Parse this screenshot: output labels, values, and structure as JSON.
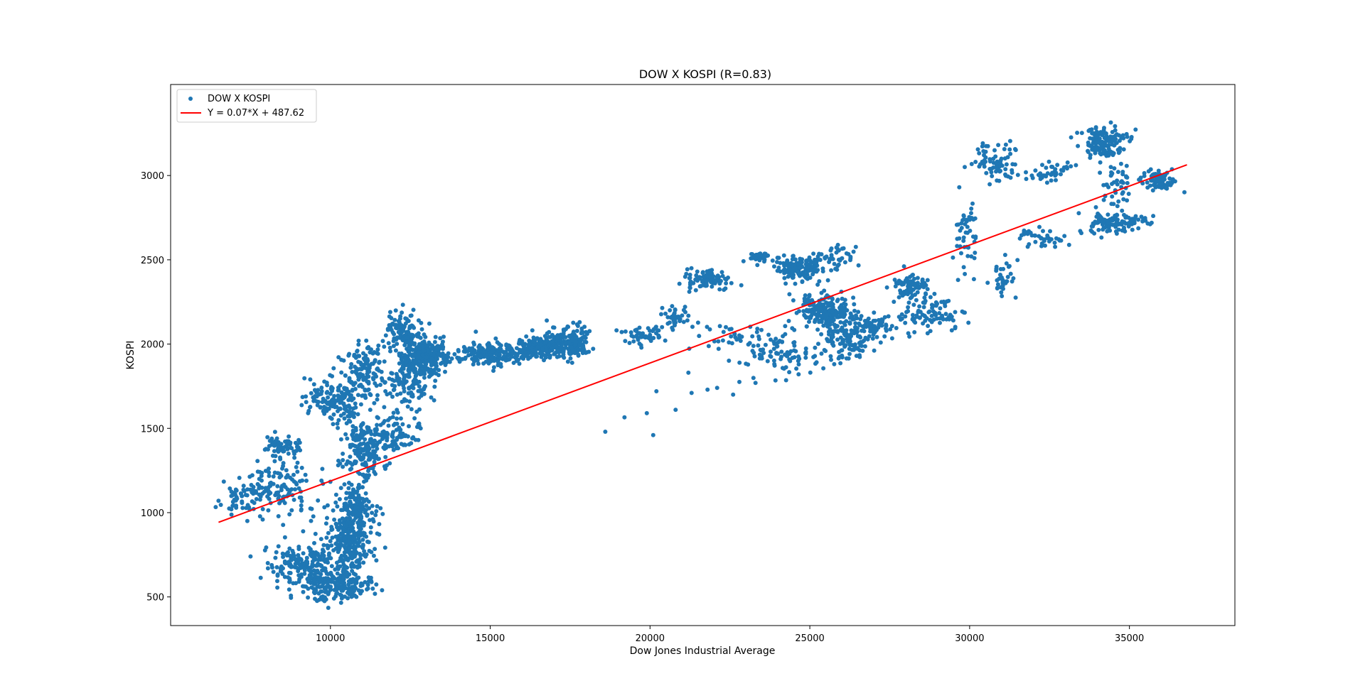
{
  "chart_data": {
    "type": "scatter",
    "title": "DOW X KOSPI (R=0.83)",
    "xlabel": "Dow Jones Industrial Average",
    "ylabel": "KOSPI",
    "xlim": [
      5000,
      38300
    ],
    "ylim": [
      330,
      3540
    ],
    "xticks": [
      10000,
      15000,
      20000,
      25000,
      30000,
      35000
    ],
    "yticks": [
      500,
      1000,
      1500,
      2000,
      2500,
      3000
    ],
    "grid": false,
    "legend_position": "top-left",
    "colors": {
      "scatter": "#1f77b4",
      "fit_line": "#ff0000",
      "axes": "#000000"
    },
    "series": [
      {
        "name": "DOW X KOSPI",
        "kind": "scatter",
        "marker_size": 3,
        "clusters": [
          {
            "cx": 9300,
            "cy": 680,
            "sx": 900,
            "sy": 90,
            "n": 220
          },
          {
            "cx": 10300,
            "cy": 560,
            "sx": 700,
            "sy": 50,
            "n": 180
          },
          {
            "cx": 10600,
            "cy": 850,
            "sx": 500,
            "sy": 140,
            "n": 260
          },
          {
            "cx": 10900,
            "cy": 1050,
            "sx": 350,
            "sy": 120,
            "n": 120
          },
          {
            "cx": 11100,
            "cy": 1380,
            "sx": 500,
            "sy": 120,
            "n": 180
          },
          {
            "cx": 12100,
            "cy": 1450,
            "sx": 500,
            "sy": 60,
            "n": 80
          },
          {
            "cx": 8400,
            "cy": 1150,
            "sx": 700,
            "sy": 110,
            "n": 120
          },
          {
            "cx": 7300,
            "cy": 1100,
            "sx": 500,
            "sy": 80,
            "n": 50
          },
          {
            "cx": 8500,
            "cy": 1400,
            "sx": 400,
            "sy": 40,
            "n": 60
          },
          {
            "cx": 10100,
            "cy": 1670,
            "sx": 600,
            "sy": 90,
            "n": 160
          },
          {
            "cx": 11100,
            "cy": 1850,
            "sx": 500,
            "sy": 110,
            "n": 130
          },
          {
            "cx": 12200,
            "cy": 2080,
            "sx": 350,
            "sy": 80,
            "n": 110
          },
          {
            "cx": 12400,
            "cy": 1780,
            "sx": 500,
            "sy": 120,
            "n": 120
          },
          {
            "cx": 13000,
            "cy": 1930,
            "sx": 450,
            "sy": 70,
            "n": 260
          },
          {
            "cx": 15100,
            "cy": 1950,
            "sx": 700,
            "sy": 50,
            "n": 180
          },
          {
            "cx": 16600,
            "cy": 1980,
            "sx": 600,
            "sy": 40,
            "n": 200
          },
          {
            "cx": 17500,
            "cy": 2020,
            "sx": 400,
            "sy": 60,
            "n": 180
          },
          {
            "cx": 19800,
            "cy": 2050,
            "sx": 500,
            "sy": 50,
            "n": 50
          },
          {
            "cx": 20800,
            "cy": 2150,
            "sx": 300,
            "sy": 50,
            "n": 40
          },
          {
            "cx": 21800,
            "cy": 2380,
            "sx": 450,
            "sy": 40,
            "n": 100
          },
          {
            "cx": 23400,
            "cy": 2520,
            "sx": 200,
            "sy": 20,
            "n": 40
          },
          {
            "cx": 24700,
            "cy": 2450,
            "sx": 500,
            "sy": 50,
            "n": 150
          },
          {
            "cx": 25900,
            "cy": 2520,
            "sx": 500,
            "sy": 50,
            "n": 40
          },
          {
            "cx": 25500,
            "cy": 2200,
            "sx": 600,
            "sy": 70,
            "n": 220
          },
          {
            "cx": 26200,
            "cy": 2030,
            "sx": 500,
            "sy": 80,
            "n": 120
          },
          {
            "cx": 27000,
            "cy": 2100,
            "sx": 400,
            "sy": 50,
            "n": 70
          },
          {
            "cx": 28200,
            "cy": 2340,
            "sx": 400,
            "sy": 50,
            "n": 70
          },
          {
            "cx": 28700,
            "cy": 2170,
            "sx": 700,
            "sy": 60,
            "n": 90
          },
          {
            "cx": 24100,
            "cy": 1950,
            "sx": 800,
            "sy": 90,
            "n": 100
          },
          {
            "cx": 22500,
            "cy": 2050,
            "sx": 800,
            "sy": 50,
            "n": 30
          },
          {
            "cx": 29900,
            "cy": 2650,
            "sx": 250,
            "sy": 150,
            "n": 50
          },
          {
            "cx": 31000,
            "cy": 2400,
            "sx": 300,
            "sy": 80,
            "n": 35
          },
          {
            "cx": 30800,
            "cy": 3080,
            "sx": 400,
            "sy": 70,
            "n": 70
          },
          {
            "cx": 32600,
            "cy": 3020,
            "sx": 500,
            "sy": 40,
            "n": 40
          },
          {
            "cx": 34200,
            "cy": 3200,
            "sx": 500,
            "sy": 60,
            "n": 150
          },
          {
            "cx": 35900,
            "cy": 2970,
            "sx": 350,
            "sy": 40,
            "n": 90
          },
          {
            "cx": 34500,
            "cy": 2720,
            "sx": 700,
            "sy": 40,
            "n": 110
          },
          {
            "cx": 32300,
            "cy": 2630,
            "sx": 500,
            "sy": 40,
            "n": 40
          },
          {
            "cx": 34600,
            "cy": 2950,
            "sx": 300,
            "sy": 90,
            "n": 45
          }
        ],
        "scattered_points": [
          [
            18600,
            1480
          ],
          [
            19200,
            1565
          ],
          [
            19900,
            1590
          ],
          [
            20100,
            1460
          ],
          [
            20200,
            1720
          ],
          [
            20800,
            1610
          ],
          [
            21300,
            1710
          ],
          [
            21800,
            1730
          ],
          [
            22100,
            1740
          ],
          [
            22600,
            1700
          ],
          [
            21200,
            1830
          ],
          [
            23300,
            1770
          ],
          [
            22800,
            1890
          ],
          [
            6500,
            1070
          ],
          [
            6900,
            1020
          ],
          [
            7400,
            950
          ]
        ]
      },
      {
        "name": "Y = 0.07*X + 487.62",
        "kind": "line",
        "slope": 0.07,
        "intercept": 487.62,
        "x_range": [
          6500,
          36800
        ]
      }
    ]
  }
}
